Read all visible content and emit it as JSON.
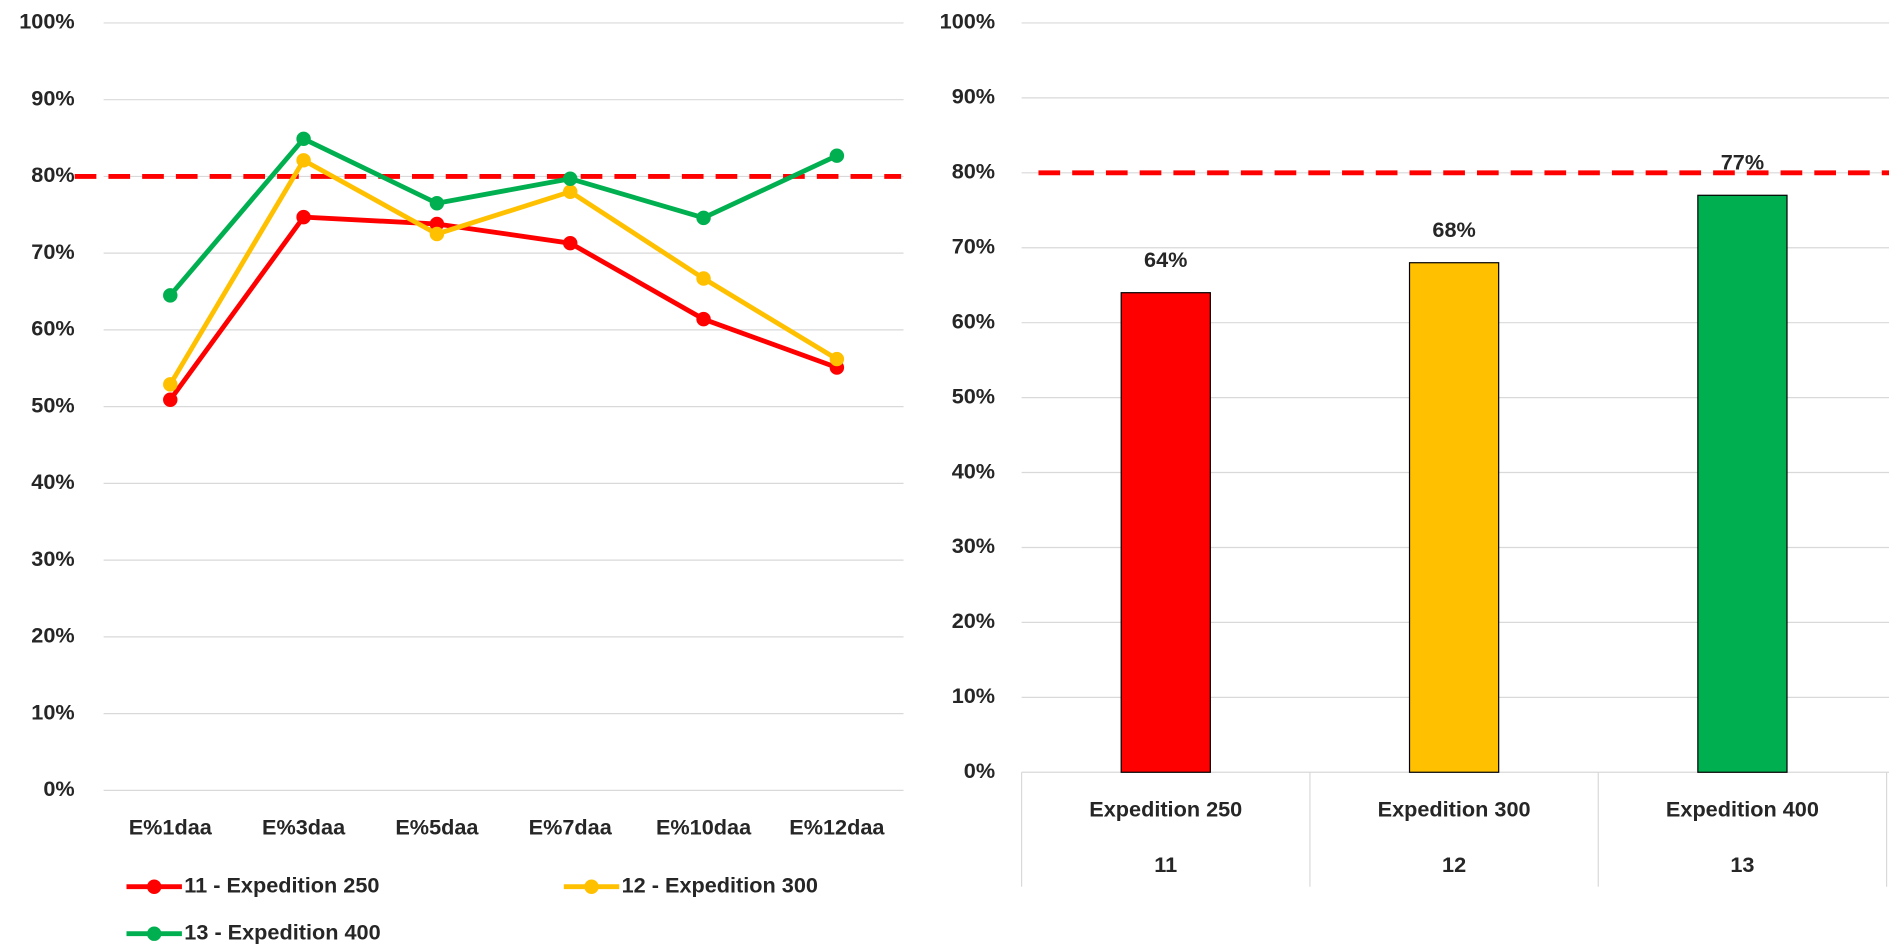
{
  "chart_data": [
    {
      "type": "line",
      "categories": [
        "E%1daa",
        "E%3daa",
        "E%5daa",
        "E%7daa",
        "E%10daa",
        "E%12daa"
      ],
      "series": [
        {
          "name": "11 - Expedition 250",
          "color": "#ff0000",
          "values": [
            50.9,
            74.7,
            73.8,
            71.3,
            61.4,
            55.1
          ]
        },
        {
          "name": "12 - Expedition 300",
          "color": "#ffc000",
          "values": [
            52.9,
            82.1,
            72.5,
            78.0,
            66.7,
            56.2
          ]
        },
        {
          "name": "13 - Expedition 400",
          "color": "#00b050",
          "values": [
            64.5,
            84.9,
            76.5,
            79.7,
            74.6,
            82.7
          ]
        }
      ],
      "ylim": [
        0,
        100
      ],
      "yticks": [
        {
          "value": 0,
          "label": "0%"
        },
        {
          "value": 10,
          "label": "10%"
        },
        {
          "value": 20,
          "label": "20%"
        },
        {
          "value": 30,
          "label": "30%"
        },
        {
          "value": 40,
          "label": "40%"
        },
        {
          "value": 50,
          "label": "50%"
        },
        {
          "value": 60,
          "label": "60%"
        },
        {
          "value": 70,
          "label": "70%"
        },
        {
          "value": 80,
          "label": "80%"
        },
        {
          "value": 90,
          "label": "90%"
        },
        {
          "value": 100,
          "label": "100%"
        }
      ],
      "threshold": 80,
      "threshold_color": "#ff0000",
      "grid": true,
      "legend": "bottom"
    },
    {
      "type": "bar",
      "categories": [
        "Expedition 250",
        "Expedition 300",
        "Expedition 400"
      ],
      "sub_categories": [
        "11",
        "12",
        "13"
      ],
      "values": [
        64,
        68,
        77
      ],
      "value_labels": [
        "64%",
        "68%",
        "77%"
      ],
      "colors": [
        "#ff0000",
        "#ffc000",
        "#00b050"
      ],
      "ylim": [
        0,
        100
      ],
      "yticks": [
        {
          "value": 0,
          "label": "0%"
        },
        {
          "value": 10,
          "label": "10%"
        },
        {
          "value": 20,
          "label": "20%"
        },
        {
          "value": 30,
          "label": "30%"
        },
        {
          "value": 40,
          "label": "40%"
        },
        {
          "value": 50,
          "label": "50%"
        },
        {
          "value": 60,
          "label": "60%"
        },
        {
          "value": 70,
          "label": "70%"
        },
        {
          "value": 80,
          "label": "80%"
        },
        {
          "value": 90,
          "label": "90%"
        },
        {
          "value": 100,
          "label": "100%"
        }
      ],
      "threshold": 80,
      "threshold_color": "#ff0000",
      "grid": true
    }
  ]
}
